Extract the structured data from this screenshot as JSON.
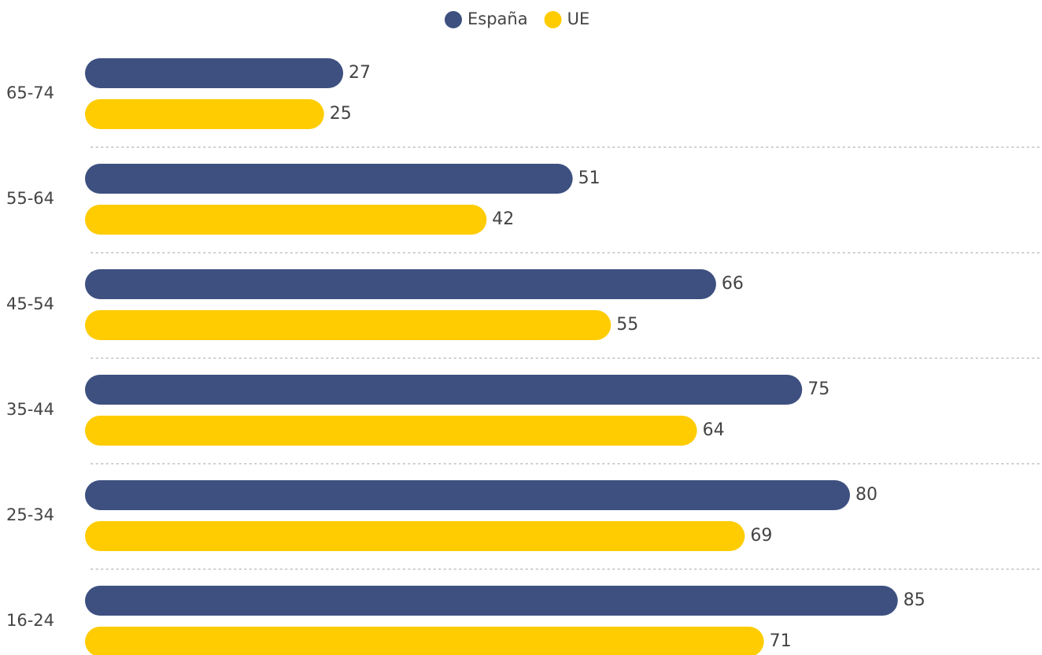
{
  "chart_data": {
    "type": "hbar",
    "categories": [
      "65-74",
      "55-64",
      "45-54",
      "35-44",
      "25-34",
      "16-24"
    ],
    "series": [
      {
        "name": "España",
        "color": "#3d5080",
        "values": [
          27,
          51,
          66,
          75,
          80,
          85
        ]
      },
      {
        "name": "UE",
        "color": "#fecc00",
        "values": [
          25,
          42,
          55,
          64,
          69,
          71
        ]
      }
    ],
    "xlim": [
      0,
      100
    ],
    "legend": "top"
  }
}
